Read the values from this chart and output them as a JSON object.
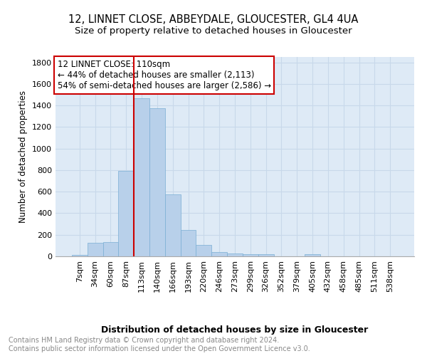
{
  "title1": "12, LINNET CLOSE, ABBEYDALE, GLOUCESTER, GL4 4UA",
  "title2": "Size of property relative to detached houses in Gloucester",
  "xlabel": "Distribution of detached houses by size in Gloucester",
  "ylabel": "Number of detached properties",
  "categories": [
    "7sqm",
    "34sqm",
    "60sqm",
    "87sqm",
    "113sqm",
    "140sqm",
    "166sqm",
    "193sqm",
    "220sqm",
    "246sqm",
    "273sqm",
    "299sqm",
    "326sqm",
    "352sqm",
    "379sqm",
    "405sqm",
    "432sqm",
    "458sqm",
    "485sqm",
    "511sqm",
    "538sqm"
  ],
  "values": [
    10,
    125,
    130,
    795,
    1470,
    1375,
    575,
    245,
    105,
    40,
    28,
    20,
    18,
    0,
    0,
    20,
    0,
    0,
    0,
    0,
    0
  ],
  "bar_color": "#b8d0ea",
  "bar_edge_color": "#7aafd4",
  "vline_x": 3.5,
  "vline_color": "#cc0000",
  "annotation_title": "12 LINNET CLOSE: 110sqm",
  "annotation_line1": "← 44% of detached houses are smaller (2,113)",
  "annotation_line2": "54% of semi-detached houses are larger (2,586) →",
  "annotation_box_color": "#cc0000",
  "ylim": [
    0,
    1850
  ],
  "yticks": [
    0,
    200,
    400,
    600,
    800,
    1000,
    1200,
    1400,
    1600,
    1800
  ],
  "grid_color": "#c8d8ea",
  "bg_color": "#deeaf6",
  "footer": "Contains HM Land Registry data © Crown copyright and database right 2024.\nContains public sector information licensed under the Open Government Licence v3.0.",
  "title1_fontsize": 10.5,
  "title2_fontsize": 9.5,
  "xlabel_fontsize": 9,
  "ylabel_fontsize": 8.5,
  "tick_fontsize": 8,
  "annot_fontsize": 8.5,
  "footer_fontsize": 7
}
